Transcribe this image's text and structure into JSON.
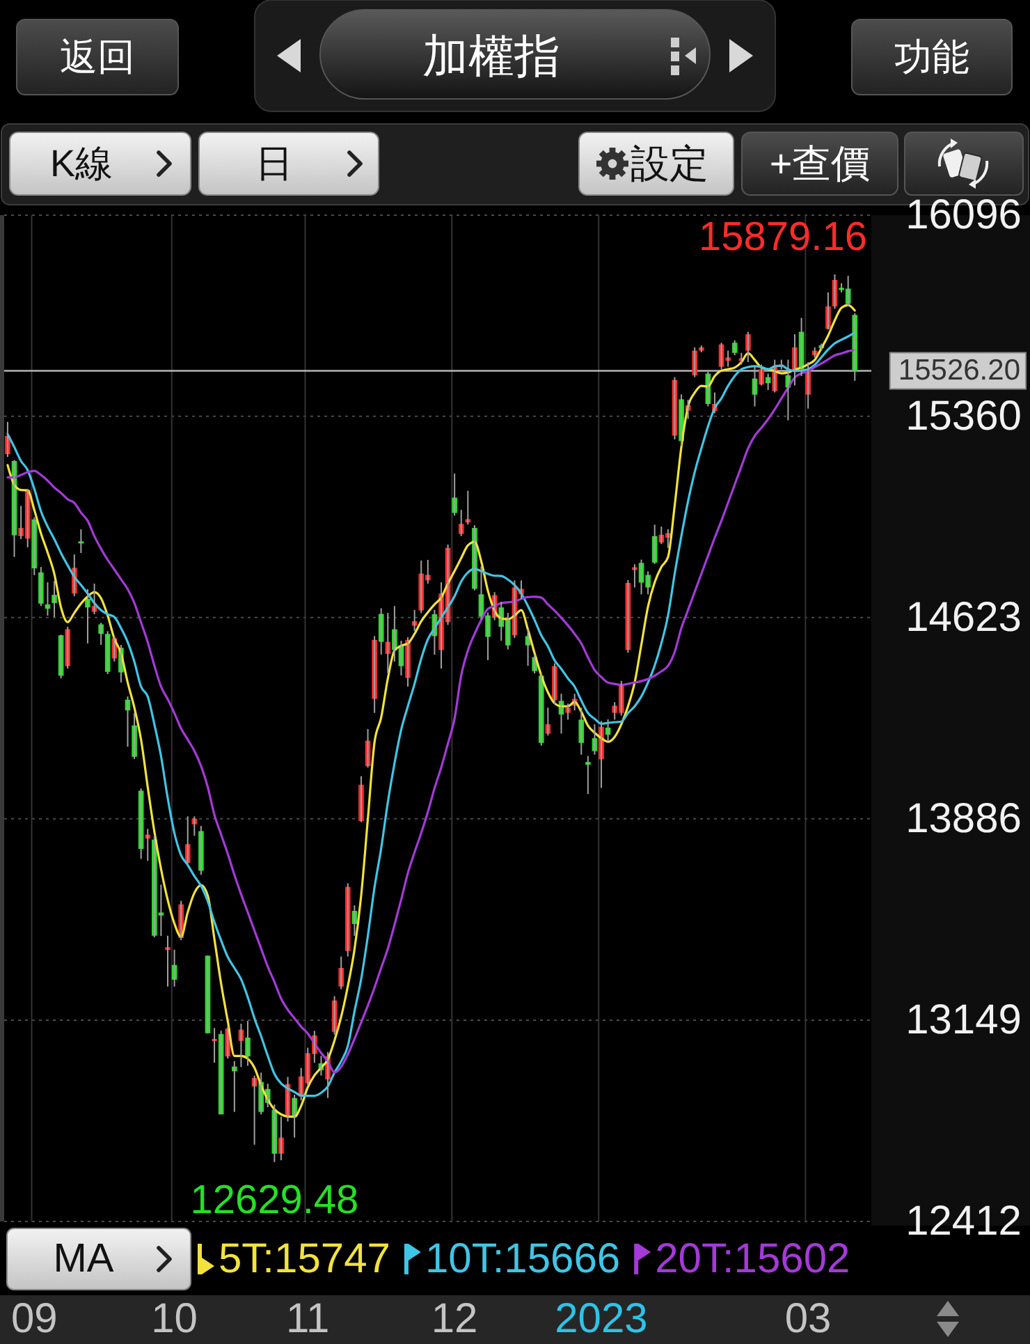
{
  "chart_data": {
    "type": "candlestick",
    "title": "加權指",
    "legend_title": "MA",
    "legend": "bottom",
    "grid": true,
    "categories": [
      null,
      null,
      null,
      null,
      "09",
      null,
      null,
      null,
      null,
      null,
      null,
      null,
      null,
      null,
      null,
      null,
      null,
      null,
      null,
      null,
      null,
      null,
      null,
      null,
      null,
      "10",
      null,
      null,
      null,
      null,
      null,
      null,
      null,
      null,
      null,
      null,
      null,
      null,
      null,
      null,
      null,
      null,
      null,
      null,
      null,
      "11",
      null,
      null,
      null,
      null,
      null,
      null,
      null,
      null,
      null,
      null,
      null,
      null,
      null,
      null,
      null,
      null,
      null,
      null,
      null,
      null,
      null,
      "12",
      null,
      null,
      null,
      null,
      null,
      null,
      null,
      null,
      null,
      null,
      null,
      null,
      null,
      null,
      null,
      null,
      null,
      null,
      null,
      null,
      null,
      "2023",
      null,
      null,
      null,
      null,
      null,
      null,
      null,
      null,
      null,
      null,
      null,
      null,
      null,
      null,
      null,
      null,
      null,
      null,
      null,
      null,
      null,
      null,
      null,
      null,
      null,
      null,
      null,
      null,
      null,
      null,
      "03",
      null,
      null,
      null,
      null,
      null,
      null,
      null
    ],
    "ohlc": [
      [
        15221,
        15339,
        15211,
        15288
      ],
      [
        15196,
        15200,
        14845,
        14924
      ],
      [
        14921,
        15032,
        14910,
        14951
      ],
      [
        14912,
        15094,
        14880,
        15090
      ],
      [
        14982,
        14990,
        14778,
        14803
      ],
      [
        14788,
        14808,
        14665,
        14674
      ],
      [
        14671,
        14752,
        14630,
        14655
      ],
      [
        14706,
        14757,
        14625,
        14676
      ],
      [
        14558,
        14560,
        14400,
        14410
      ],
      [
        14445,
        14589,
        14436,
        14580
      ],
      [
        14711,
        14854,
        14701,
        14805
      ],
      [
        14902,
        14946,
        14859,
        14895
      ],
      [
        14691,
        14727,
        14528,
        14660
      ],
      [
        14644,
        14747,
        14635,
        14665
      ],
      [
        14598,
        14604,
        14523,
        14563
      ],
      [
        14563,
        14573,
        14416,
        14424
      ],
      [
        14473,
        14557,
        14462,
        14547
      ],
      [
        14512,
        14523,
        14385,
        14422
      ],
      [
        14322,
        14334,
        14150,
        14283
      ],
      [
        14228,
        14274,
        14105,
        14113
      ],
      [
        13989,
        13997,
        13739,
        13776
      ],
      [
        13814,
        13849,
        13732,
        13828
      ],
      [
        13810,
        13824,
        13452,
        13458
      ],
      [
        13543,
        13645,
        13457,
        13532
      ],
      [
        13406,
        13458,
        13272,
        13416
      ],
      [
        13351,
        13407,
        13272,
        13297
      ],
      [
        13450,
        13586,
        13442,
        13573
      ],
      [
        13725,
        13895,
        13722,
        13793
      ],
      [
        13866,
        13895,
        13824,
        13887
      ],
      [
        13841,
        13860,
        13681,
        13696
      ],
      [
        13385,
        13385,
        13100,
        13101
      ],
      [
        13075,
        13120,
        12993,
        13080
      ],
      [
        13098,
        13110,
        12804,
        12804
      ],
      [
        13016,
        13125,
        13008,
        13118
      ],
      [
        12979,
        12999,
        12813,
        12962
      ],
      [
        13073,
        13136,
        12977,
        13114
      ],
      [
        13085,
        13146,
        12982,
        13016
      ],
      [
        12906,
        12946,
        12693,
        12937
      ],
      [
        12923,
        12957,
        12804,
        12813
      ],
      [
        12897,
        12916,
        12830,
        12846
      ],
      [
        12821,
        12840,
        12629.48,
        12660
      ],
      [
        12660,
        12796,
        12636,
        12719
      ],
      [
        12795,
        12941,
        12778,
        12915
      ],
      [
        12864,
        12876,
        12719,
        12795
      ],
      [
        12869,
        12974,
        12855,
        12943
      ],
      [
        12918,
        13048,
        12911,
        13028
      ],
      [
        13025,
        13110,
        12993,
        13093
      ],
      [
        12991,
        13018,
        12946,
        12966
      ],
      [
        12932,
        13032,
        12864,
        13017
      ],
      [
        13106,
        13237,
        13096,
        13221
      ],
      [
        13272,
        13382,
        13262,
        13340
      ],
      [
        13402,
        13650,
        13382,
        13637
      ],
      [
        13549,
        13569,
        13458,
        13501
      ],
      [
        13878,
        14042,
        13874,
        14011
      ],
      [
        14079,
        14215,
        14074,
        14172
      ],
      [
        14325,
        14555,
        14274,
        14541
      ],
      [
        14636,
        14657,
        14487,
        14534
      ],
      [
        14490,
        14640,
        14420,
        14534
      ],
      [
        14580,
        14665,
        14462,
        14504
      ],
      [
        14521,
        14538,
        14411,
        14445
      ],
      [
        14402,
        14551,
        14370,
        14541
      ],
      [
        14593,
        14651,
        14573,
        14609
      ],
      [
        14649,
        14832,
        14639,
        14784
      ],
      [
        14759,
        14834,
        14747,
        14779
      ],
      [
        14635,
        14651,
        14487,
        14555
      ],
      [
        14504,
        14752,
        14436,
        14711
      ],
      [
        14606,
        14890,
        14596,
        14878
      ],
      [
        15062,
        15150,
        14996,
        15006
      ],
      [
        14929,
        15017,
        14921,
        14966
      ],
      [
        14971,
        15087,
        14963,
        14983
      ],
      [
        14951,
        14961,
        14722,
        14728
      ],
      [
        14708,
        14810,
        14616,
        14626
      ],
      [
        14631,
        14641,
        14467,
        14552
      ],
      [
        14623,
        14716,
        14613,
        14705
      ],
      [
        14660,
        14681,
        14538,
        14589
      ],
      [
        14614,
        14640,
        14506,
        14521
      ],
      [
        14558,
        14759,
        14548,
        14733
      ],
      [
        14708,
        14759,
        14691,
        14728
      ],
      [
        14555,
        14580,
        14446,
        14521
      ],
      [
        14478,
        14487,
        14418,
        14427
      ],
      [
        14410,
        14420,
        14154,
        14164
      ],
      [
        14198,
        14293,
        14191,
        14232
      ],
      [
        14320,
        14455,
        14305,
        14445
      ],
      [
        14318,
        14344,
        14198,
        14268
      ],
      [
        14274,
        14308,
        14249,
        14293
      ],
      [
        14300,
        14344,
        14283,
        14325
      ],
      [
        14249,
        14293,
        14121,
        14164
      ],
      [
        14094,
        14116,
        13977,
        14084
      ],
      [
        14181,
        14232,
        14121,
        14134
      ],
      [
        14104,
        14244,
        13999,
        14223
      ],
      [
        14220,
        14250,
        14170,
        14194
      ],
      [
        14274,
        14313,
        14249,
        14300
      ],
      [
        14274,
        14391,
        14264,
        14376
      ],
      [
        14504,
        14760,
        14494,
        14750
      ],
      [
        14797,
        14818,
        14733,
        14807
      ],
      [
        14823,
        14835,
        14708,
        14751
      ],
      [
        14779,
        14792,
        14708,
        14733
      ],
      [
        14921,
        14963,
        14819,
        14824
      ],
      [
        14898,
        14956,
        14892,
        14926
      ],
      [
        14915,
        14946,
        14878,
        14932
      ],
      [
        15289,
        15503,
        15275,
        15493
      ],
      [
        15422,
        15440,
        15250,
        15269
      ],
      [
        15380,
        15420,
        15350,
        15400
      ],
      [
        15510,
        15612,
        15503,
        15600
      ],
      [
        15600,
        15619,
        15594,
        15612
      ],
      [
        15516,
        15524,
        15396,
        15405
      ],
      [
        15379,
        15447,
        15371,
        15405
      ],
      [
        15541,
        15629,
        15532,
        15623
      ],
      [
        15563,
        15600,
        15541,
        15575
      ],
      [
        15629,
        15638,
        15583,
        15592
      ],
      [
        15562,
        15592,
        15549,
        15572
      ],
      [
        15600,
        15669,
        15558,
        15660
      ],
      [
        15498,
        15541,
        15396,
        15439
      ],
      [
        15476,
        15549,
        15473,
        15532
      ],
      [
        15503,
        15516,
        15456,
        15481
      ],
      [
        15452,
        15567,
        15447,
        15541
      ],
      [
        15541,
        15567,
        15532,
        15549
      ],
      [
        15510,
        15567,
        15345,
        15465
      ],
      [
        15532,
        15660,
        15473,
        15612
      ],
      [
        15669,
        15720,
        15507,
        15532
      ],
      [
        15439,
        15558,
        15388,
        15532
      ],
      [
        15583,
        15612,
        15575,
        15600
      ],
      [
        15620,
        15626,
        15600,
        15609
      ],
      [
        15680,
        15813,
        15677,
        15762
      ],
      [
        15762,
        15879.16,
        15753,
        15859
      ],
      [
        15830,
        15847,
        15813,
        15822
      ],
      [
        15827,
        15874,
        15762,
        15771
      ],
      [
        15731,
        15737,
        15490,
        15526.2
      ]
    ],
    "colors": [
      "#ff2b2b",
      "#25e025",
      "#ff2b2b",
      "#ff2b2b",
      "#25e025",
      "#25e025",
      "#25e025",
      "#25e025",
      "#25e025",
      "#ff2b2b",
      "#ff2b2b",
      "#25e025",
      "#25e025",
      "#ff2b2b",
      "#25e025",
      "#25e025",
      "#ff2b2b",
      "#25e025",
      "#25e025",
      "#25e025",
      "#25e025",
      "#ff2b2b",
      "#25e025",
      "#25e025",
      "#ff2b2b",
      "#25e025",
      "#ff2b2b",
      "#ff2b2b",
      "#ff2b2b",
      "#25e025",
      "#25e025",
      "#ff2b2b",
      "#25e025",
      "#ff2b2b",
      "#25e025",
      "#ff2b2b",
      "#25e025",
      "#ff2b2b",
      "#25e025",
      "#25e025",
      "#25e025",
      "#ff2b2b",
      "#ff2b2b",
      "#25e025",
      "#ff2b2b",
      "#ff2b2b",
      "#ff2b2b",
      "#25e025",
      "#ff2b2b",
      "#ff2b2b",
      "#ff2b2b",
      "#ff2b2b",
      "#25e025",
      "#ff2b2b",
      "#ff2b2b",
      "#ff2b2b",
      "#25e025",
      "#ff2b2b",
      "#25e025",
      "#25e025",
      "#ff2b2b",
      "#ff2b2b",
      "#ff2b2b",
      "#ff2b2b",
      "#25e025",
      "#ff2b2b",
      "#ff2b2b",
      "#25e025",
      "#ff2b2b",
      "#ff2b2b",
      "#25e025",
      "#25e025",
      "#25e025",
      "#ff2b2b",
      "#25e025",
      "#25e025",
      "#ff2b2b",
      "#ff2b2b",
      "#25e025",
      "#25e025",
      "#25e025",
      "#ff2b2b",
      "#ff2b2b",
      "#25e025",
      "#ff2b2b",
      "#ff2b2b",
      "#25e025",
      "#25e025",
      "#25e025",
      "#ff2b2b",
      "#25e025",
      "#ff2b2b",
      "#ff2b2b",
      "#ff2b2b",
      "#ff2b2b",
      "#25e025",
      "#25e025",
      "#25e025",
      "#ff2b2b",
      "#ff2b2b",
      "#ff2b2b",
      "#25e025",
      "#ff2b2b",
      "#ff2b2b",
      "#ff2b2b",
      "#25e025",
      "#ff2b2b",
      "#ff2b2b",
      "#ff2b2b",
      "#25e025",
      "#ff2b2b",
      "#ff2b2b",
      "#25e025",
      "#ff2b2b",
      "#25e025",
      "#ff2b2b",
      "#ff2b2b",
      "#25e025",
      "#ff2b2b",
      "#25e025",
      "#ff2b2b",
      "#ff2b2b",
      "#25e025",
      "#ff2b2b",
      "#ff2b2b",
      "#25e025",
      "#25e025",
      "#25e025"
    ],
    "series": [
      {
        "type": "line",
        "name": "5T:15747",
        "color": "#f3e23b",
        "values": [
          15181,
          15109,
          15090,
          15089,
          15017,
          14931,
          14861,
          14783,
          14660,
          14606,
          14640,
          14674,
          14700,
          14716,
          14694,
          14630,
          14546,
          14492,
          14385,
          14293,
          14176,
          14003,
          13839,
          13702,
          13589,
          13503,
          13454,
          13544,
          13615,
          13643,
          13605,
          13446,
          13283,
          13146,
          13018,
          13018,
          13008,
          12975,
          12911,
          12858,
          12822,
          12804,
          12796,
          12795,
          12835,
          12903,
          12947,
          12975,
          13005,
          13074,
          13161,
          13273,
          13408,
          13605,
          13885,
          14166,
          14257,
          14400,
          14502,
          14520,
          14528,
          14563,
          14609,
          14642,
          14671,
          14696,
          14747,
          14793,
          14841,
          14887,
          14900,
          14829,
          14721,
          14648,
          14620,
          14617,
          14630,
          14650,
          14579,
          14492,
          14411,
          14349,
          14309,
          14298,
          14298,
          14314,
          14278,
          14227,
          14201,
          14181,
          14168,
          14186,
          14232,
          14298,
          14385,
          14523,
          14663,
          14752,
          14808,
          14844,
          15033,
          15247,
          15395,
          15446,
          15471,
          15469,
          15507,
          15527,
          15532,
          15538,
          15558,
          15591,
          15566,
          15538,
          15532,
          15525,
          15517,
          15520,
          15530,
          15538,
          15550,
          15566,
          15609,
          15655,
          15711,
          15757,
          15767,
          15747
        ]
      },
      {
        "type": "line",
        "name": "10T:15666",
        "color": "#3fc6e6",
        "values": [
          15295,
          15247,
          15196,
          15163,
          15094,
          15012,
          14956,
          14910,
          14859,
          14814,
          14772,
          14742,
          14711,
          14676,
          14650,
          14635,
          14625,
          14584,
          14533,
          14461,
          14370,
          14334,
          14232,
          14115,
          13962,
          13834,
          13753,
          13717,
          13676,
          13640,
          13584,
          13508,
          13441,
          13380,
          13340,
          13299,
          13233,
          13156,
          13090,
          13018,
          12952,
          12917,
          12899,
          12886,
          12873,
          12872,
          12872,
          12883,
          12906,
          12957,
          12998,
          13054,
          13181,
          13299,
          13457,
          13635,
          13778,
          13947,
          14089,
          14212,
          14298,
          14380,
          14472,
          14543,
          14584,
          14623,
          14660,
          14701,
          14755,
          14788,
          14801,
          14793,
          14783,
          14776,
          14775,
          14762,
          14742,
          14711,
          14665,
          14614,
          14558,
          14517,
          14466,
          14435,
          14400,
          14370,
          14319,
          14273,
          14252,
          14234,
          14237,
          14240,
          14242,
          14273,
          14298,
          14334,
          14385,
          14447,
          14528,
          14630,
          14783,
          14921,
          15048,
          15155,
          15242,
          15323,
          15390,
          15425,
          15471,
          15507,
          15532,
          15540,
          15543,
          15540,
          15532,
          15543,
          15545,
          15532,
          15525,
          15527,
          15532,
          15548,
          15576,
          15604,
          15627,
          15640,
          15652,
          15666
        ]
      },
      {
        "type": "line",
        "name": "20T:15602",
        "color": "#a43ad8",
        "values": [
          15136,
          15136,
          15145,
          15155,
          15160,
          15145,
          15124,
          15099,
          15079,
          15056,
          15043,
          15007,
          14977,
          14921,
          14875,
          14834,
          14799,
          14763,
          14727,
          14676,
          14605,
          14533,
          14447,
          14370,
          14324,
          14273,
          14217,
          14176,
          14135,
          14079,
          14003,
          13901,
          13829,
          13758,
          13681,
          13610,
          13544,
          13477,
          13411,
          13345,
          13289,
          13228,
          13187,
          13156,
          13125,
          13100,
          13064,
          13029,
          12998,
          12957,
          12978,
          13024,
          13080,
          13141,
          13202,
          13268,
          13340,
          13411,
          13498,
          13590,
          13687,
          13763,
          13834,
          13911,
          13998,
          14074,
          14161,
          14253,
          14411,
          14502,
          14563,
          14614,
          14655,
          14665,
          14676,
          14679,
          14682,
          14691,
          14698,
          14699,
          14696,
          14671,
          14648,
          14622,
          14594,
          14563,
          14528,
          14477,
          14431,
          14405,
          14385,
          14380,
          14376,
          14380,
          14385,
          14390,
          14398,
          14410,
          14426,
          14446,
          14497,
          14584,
          14650,
          14717,
          14783,
          14849,
          14915,
          14977,
          15043,
          15110,
          15176,
          15242,
          15288,
          15318,
          15349,
          15385,
          15425,
          15464,
          15502,
          15517,
          15525,
          15540,
          15553,
          15568,
          15583,
          15590,
          15598,
          15602
        ]
      }
    ],
    "ylim": [
      12412,
      16096
    ],
    "yticks": [
      12412,
      13149,
      13886,
      14623,
      15360,
      16096
    ],
    "ref_lines": [
      {
        "axis": "y",
        "value": 15526.2,
        "label": "15526.20",
        "color": "#b4b4b4"
      }
    ],
    "annotations": [
      "返回",
      "功能",
      "K線",
      "日",
      "設定",
      "+查價",
      "15879.16",
      "12629.48"
    ]
  }
}
